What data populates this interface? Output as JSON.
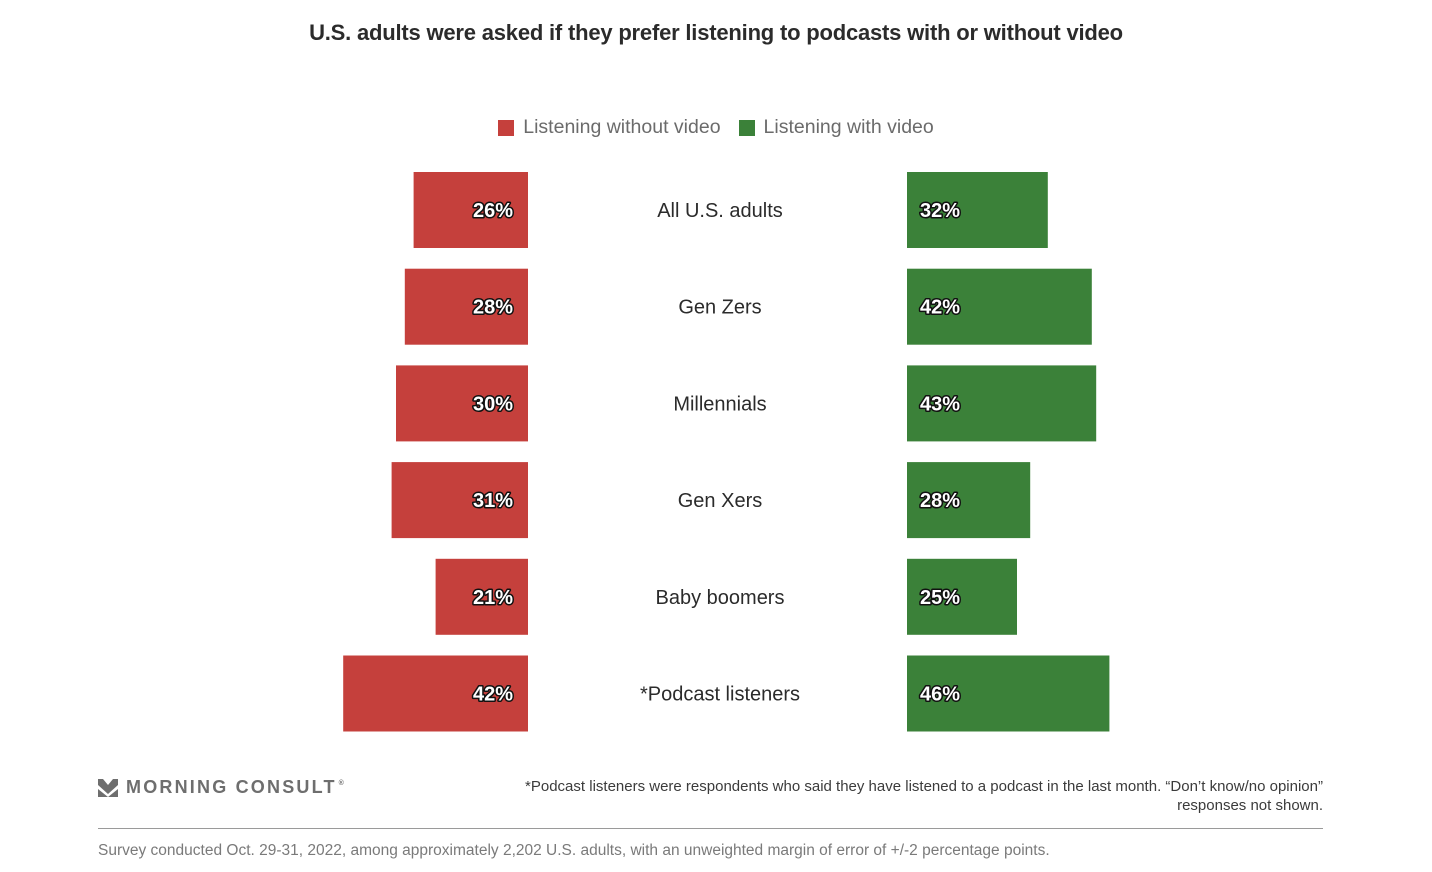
{
  "colors": {
    "without_video": "#c5403c",
    "with_video": "#3b8139",
    "text": "#2b2b2b",
    "muted": "#6b6b6b"
  },
  "chart_data": {
    "type": "bar",
    "orientation": "horizontal-diverging",
    "title": "U.S. adults were asked if they prefer listening to podcasts with or without video",
    "xlabel": "",
    "ylabel": "",
    "legend_position": "top-center",
    "grid": false,
    "categories": [
      "All U.S. adults",
      "Gen Zers",
      "Millennials",
      "Gen Xers",
      "Baby boomers",
      "*Podcast listeners"
    ],
    "series": [
      {
        "name": "Listening without video",
        "color": "#c5403c",
        "values": [
          26,
          28,
          30,
          31,
          21,
          42
        ],
        "labels": [
          "26%",
          "28%",
          "30%",
          "31%",
          "21%",
          "42%"
        ]
      },
      {
        "name": "Listening with video",
        "color": "#3b8139",
        "values": [
          32,
          42,
          43,
          28,
          25,
          46
        ],
        "labels": [
          "32%",
          "42%",
          "43%",
          "28%",
          "25%",
          "46%"
        ]
      }
    ],
    "xlim": [
      0,
      50
    ],
    "units": "%"
  },
  "legend": {
    "items": [
      {
        "label": "Listening without video"
      },
      {
        "label": "Listening with video"
      }
    ]
  },
  "footer": {
    "logo_text": "MORNING CONSULT",
    "logo_mark": "®",
    "footnote": "*Podcast listeners were respondents who said they have listened to a podcast in the last month. “Don’t know/no opinion” responses not shown.",
    "source": "Survey conducted Oct. 29-31, 2022, among approximately 2,202 U.S. adults, with an unweighted margin of error of +/-2 percentage points."
  }
}
